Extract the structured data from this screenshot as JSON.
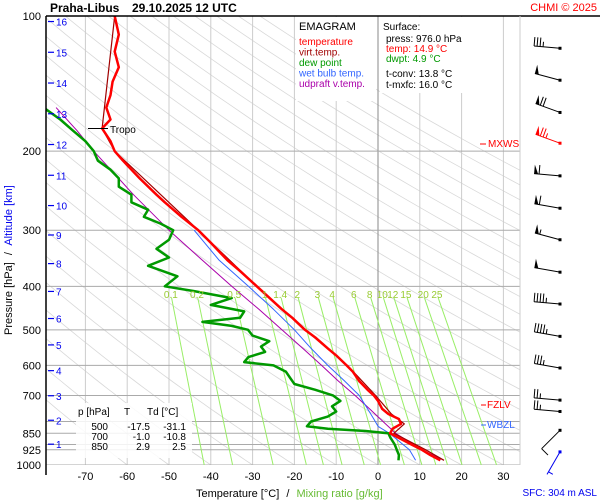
{
  "header": {
    "station": "Praha-Libus",
    "datetime": "29.10.2025 12 UTC",
    "credit": "CHMI © 2025"
  },
  "legend": {
    "title": "EMAGRAM",
    "items": [
      {
        "label": "temperature",
        "color": "#ff0000"
      },
      {
        "label": "virt.temp.",
        "color": "#a00000"
      },
      {
        "label": "dew point",
        "color": "#009900"
      },
      {
        "label": "wet bulb temp.",
        "color": "#3366ff"
      },
      {
        "label": "udpraft v.temp.",
        "color": "#aa00aa"
      }
    ]
  },
  "surface": {
    "title": "Surface:",
    "press": "press: 976.0 hPa",
    "temp": "temp: 14.9 °C",
    "dwpt": "dwpt: 4.9 °C",
    "tconv": "t-conv: 13.8 °C",
    "tmxfc": "t-mxfc: 16.0 °C"
  },
  "table": {
    "headers": [
      "p [hPa]",
      "T",
      "Td [°C]"
    ],
    "rows": [
      [
        "500",
        "-17.5",
        "-31.1"
      ],
      [
        "700",
        "-1.0",
        "-10.8"
      ],
      [
        "850",
        "2.9",
        "2.5"
      ]
    ]
  },
  "levels": {
    "tropo": "Tropo",
    "mxws": "MXWS",
    "fzlv": "FZLV",
    "wbzl": "WBZL",
    "sfc": "SFC: 304 m ASL"
  },
  "chart_data": {
    "type": "line",
    "title": "EMAGRAM",
    "xlabel": "Temperature [°C]",
    "xlabel_sep": "/",
    "xlabel2": "Mixing ratio [g/kg]",
    "ylabel": "Pressure [hPa]",
    "ylabel_sep": "/",
    "ylabel2": "Altitude [km]",
    "y_scale": "log",
    "xlim": [
      -80,
      33
    ],
    "ylim": [
      1000,
      100
    ],
    "x_ticks": [
      -70,
      -60,
      -50,
      -40,
      -30,
      -20,
      -10,
      0,
      10,
      20,
      30
    ],
    "p_ticks": [
      100,
      200,
      300,
      400,
      500,
      600,
      700,
      850,
      925,
      1000
    ],
    "p_grid": [
      100,
      200,
      300,
      400,
      500,
      600,
      700,
      800,
      850,
      900,
      925,
      1000
    ],
    "km_ticks": [
      "1",
      "2",
      "3",
      "4",
      "5",
      "6",
      "7",
      "8",
      "9",
      "10",
      "11",
      "12",
      "13",
      "14",
      "15",
      "16"
    ],
    "mixing_ratios": [
      "0.1",
      "0.2",
      "0.5",
      "1",
      "1.4",
      "2",
      "3",
      "4",
      "6",
      "8",
      "10",
      "12",
      "15",
      "20",
      "25"
    ],
    "series": [
      {
        "name": "temperature",
        "color": "#ff0000",
        "points": [
          [
            976,
            14.9
          ],
          [
            950,
            12.5
          ],
          [
            925,
            10.5
          ],
          [
            900,
            8
          ],
          [
            875,
            5.5
          ],
          [
            850,
            2.9
          ],
          [
            830,
            3.5
          ],
          [
            810,
            5.5
          ],
          [
            790,
            5
          ],
          [
            770,
            2.5
          ],
          [
            750,
            1
          ],
          [
            720,
            0
          ],
          [
            700,
            -1.0
          ],
          [
            680,
            -2.5
          ],
          [
            650,
            -4.5
          ],
          [
            620,
            -6
          ],
          [
            600,
            -7.5
          ],
          [
            570,
            -10
          ],
          [
            550,
            -12
          ],
          [
            520,
            -15
          ],
          [
            500,
            -17.5
          ],
          [
            470,
            -20.5
          ],
          [
            450,
            -23
          ],
          [
            420,
            -26.5
          ],
          [
            400,
            -29
          ],
          [
            370,
            -33
          ],
          [
            350,
            -36
          ],
          [
            320,
            -40
          ],
          [
            300,
            -43
          ],
          [
            280,
            -47
          ],
          [
            260,
            -51
          ],
          [
            250,
            -53
          ],
          [
            230,
            -57
          ],
          [
            210,
            -61
          ],
          [
            200,
            -63
          ],
          [
            190,
            -64
          ],
          [
            178,
            -66
          ],
          [
            170,
            -64
          ],
          [
            160,
            -65
          ],
          [
            150,
            -64
          ],
          [
            140,
            -63.5
          ],
          [
            130,
            -62
          ],
          [
            120,
            -63
          ],
          [
            110,
            -62
          ],
          [
            100,
            -63
          ]
        ]
      },
      {
        "name": "virt.temp.",
        "color": "#a00000",
        "points": [
          [
            976,
            15.8
          ],
          [
            925,
            11.4
          ],
          [
            850,
            3.8
          ],
          [
            810,
            6.3
          ],
          [
            770,
            3.2
          ],
          [
            700,
            -0.6
          ],
          [
            600,
            -7.3
          ],
          [
            500,
            -17.4
          ],
          [
            400,
            -29
          ],
          [
            300,
            -43
          ],
          [
            200,
            -63
          ],
          [
            178,
            -66
          ],
          [
            100,
            -63
          ]
        ]
      },
      {
        "name": "dew point",
        "color": "#009900",
        "points": [
          [
            976,
            4.9
          ],
          [
            950,
            5
          ],
          [
            925,
            4.5
          ],
          [
            900,
            4
          ],
          [
            870,
            3
          ],
          [
            850,
            2.5
          ],
          [
            840,
            -3
          ],
          [
            830,
            -12
          ],
          [
            820,
            -17
          ],
          [
            800,
            -16
          ],
          [
            780,
            -12
          ],
          [
            760,
            -10
          ],
          [
            740,
            -11
          ],
          [
            720,
            -9
          ],
          [
            700,
            -10.8
          ],
          [
            680,
            -15
          ],
          [
            660,
            -20
          ],
          [
            640,
            -21
          ],
          [
            620,
            -22
          ],
          [
            600,
            -25
          ],
          [
            590,
            -32
          ],
          [
            575,
            -31
          ],
          [
            560,
            -27
          ],
          [
            545,
            -28
          ],
          [
            530,
            -26
          ],
          [
            515,
            -30
          ],
          [
            500,
            -31.1
          ],
          [
            490,
            -35
          ],
          [
            480,
            -42
          ],
          [
            470,
            -33
          ],
          [
            455,
            -32
          ],
          [
            440,
            -40
          ],
          [
            425,
            -35
          ],
          [
            410,
            -44
          ],
          [
            400,
            -51
          ],
          [
            380,
            -48
          ],
          [
            360,
            -55
          ],
          [
            345,
            -50
          ],
          [
            330,
            -53
          ],
          [
            315,
            -50
          ],
          [
            300,
            -49
          ],
          [
            290,
            -52
          ],
          [
            280,
            -56
          ],
          [
            270,
            -55
          ],
          [
            260,
            -59
          ],
          [
            250,
            -59
          ],
          [
            240,
            -62
          ],
          [
            230,
            -62
          ],
          [
            220,
            -64
          ],
          [
            210,
            -67
          ],
          [
            200,
            -68
          ],
          [
            190,
            -70
          ],
          [
            180,
            -73
          ],
          [
            170,
            -76
          ],
          [
            160,
            -80
          ]
        ]
      },
      {
        "name": "wet bulb temp.",
        "color": "#3366ff",
        "points": [
          [
            976,
            9
          ],
          [
            925,
            7.5
          ],
          [
            850,
            2.7
          ],
          [
            820,
            0
          ],
          [
            790,
            -1
          ],
          [
            750,
            -2.5
          ],
          [
            700,
            -4.5
          ],
          [
            650,
            -8
          ],
          [
            600,
            -12
          ],
          [
            550,
            -16
          ],
          [
            500,
            -20
          ],
          [
            450,
            -25
          ],
          [
            400,
            -31
          ],
          [
            350,
            -38
          ],
          [
            300,
            -44
          ]
        ]
      },
      {
        "name": "udpraft v.temp.",
        "color": "#aa00aa",
        "points": [
          [
            976,
            15.8
          ],
          [
            925,
            10.5
          ],
          [
            850,
            4.2
          ],
          [
            800,
            1.2
          ],
          [
            750,
            -2
          ],
          [
            700,
            -5.5
          ],
          [
            650,
            -9.5
          ],
          [
            600,
            -13.5
          ],
          [
            550,
            -18
          ],
          [
            500,
            -23
          ],
          [
            450,
            -28.5
          ],
          [
            400,
            -35
          ],
          [
            350,
            -42
          ],
          [
            300,
            -50
          ],
          [
            250,
            -58.5
          ],
          [
            200,
            -68
          ],
          [
            180,
            -72
          ],
          [
            160,
            -77
          ]
        ]
      }
    ],
    "wind": [
      {
        "p": 118,
        "dir": 275,
        "kt": 35
      },
      {
        "p": 139,
        "dir": 285,
        "kt": 50
      },
      {
        "p": 164,
        "dir": 290,
        "kt": 70
      },
      {
        "p": 192,
        "dir": 290,
        "kt": 75,
        "max": true
      },
      {
        "p": 227,
        "dir": 275,
        "kt": 60
      },
      {
        "p": 268,
        "dir": 280,
        "kt": 60
      },
      {
        "p": 315,
        "dir": 285,
        "kt": 55
      },
      {
        "p": 372,
        "dir": 280,
        "kt": 50
      },
      {
        "p": 438,
        "dir": 275,
        "kt": 45
      },
      {
        "p": 517,
        "dir": 280,
        "kt": 45
      },
      {
        "p": 608,
        "dir": 280,
        "kt": 35
      },
      {
        "p": 717,
        "dir": 275,
        "kt": 25
      },
      {
        "p": 760,
        "dir": 275,
        "kt": 25
      },
      {
        "p": 837,
        "dir": 225,
        "kt": 10
      },
      {
        "p": 935,
        "dir": 210,
        "kt": 5,
        "sfc": true
      }
    ],
    "grid": true,
    "legend_position": "top-center"
  }
}
